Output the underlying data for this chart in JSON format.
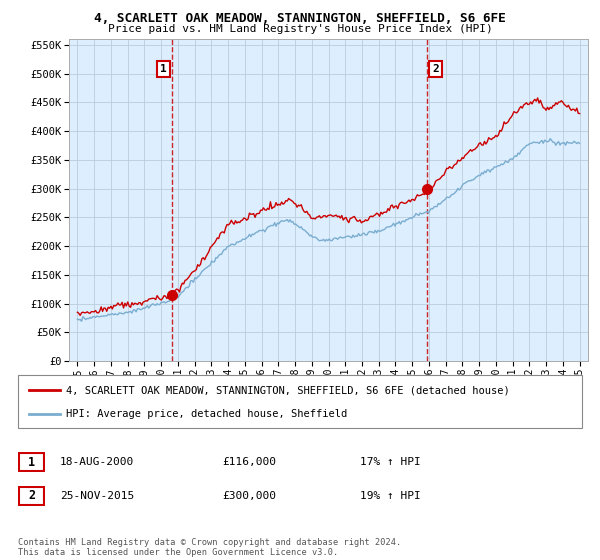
{
  "title": "4, SCARLETT OAK MEADOW, STANNINGTON, SHEFFIELD, S6 6FE",
  "subtitle": "Price paid vs. HM Land Registry's House Price Index (HPI)",
  "legend_line1": "4, SCARLETT OAK MEADOW, STANNINGTON, SHEFFIELD, S6 6FE (detached house)",
  "legend_line2": "HPI: Average price, detached house, Sheffield",
  "annotation1_label": "1",
  "annotation1_date": "18-AUG-2000",
  "annotation1_price": "£116,000",
  "annotation1_hpi": "17% ↑ HPI",
  "annotation2_label": "2",
  "annotation2_date": "25-NOV-2015",
  "annotation2_price": "£300,000",
  "annotation2_hpi": "19% ↑ HPI",
  "footnote": "Contains HM Land Registry data © Crown copyright and database right 2024.\nThis data is licensed under the Open Government Licence v3.0.",
  "sale1_x": 2000.625,
  "sale1_y": 116000,
  "sale2_x": 2015.9,
  "sale2_y": 300000,
  "vline1_x": 2000.625,
  "vline2_x": 2015.9,
  "red_color": "#cc0000",
  "blue_color": "#7aadcf",
  "vline_color": "#cc0000",
  "plot_bg_color": "#ddeeff",
  "background_color": "#ffffff",
  "grid_color": "#bbccdd",
  "ylim_min": 0,
  "ylim_max": 560000,
  "xlim_min": 1994.5,
  "xlim_max": 2025.5,
  "yticks": [
    0,
    50000,
    100000,
    150000,
    200000,
    250000,
    300000,
    350000,
    400000,
    450000,
    500000,
    550000
  ],
  "xticks": [
    1995,
    1996,
    1997,
    1998,
    1999,
    2000,
    2001,
    2002,
    2003,
    2004,
    2005,
    2006,
    2007,
    2008,
    2009,
    2010,
    2011,
    2012,
    2013,
    2014,
    2015,
    2016,
    2017,
    2018,
    2019,
    2020,
    2021,
    2022,
    2023,
    2024,
    2025
  ]
}
